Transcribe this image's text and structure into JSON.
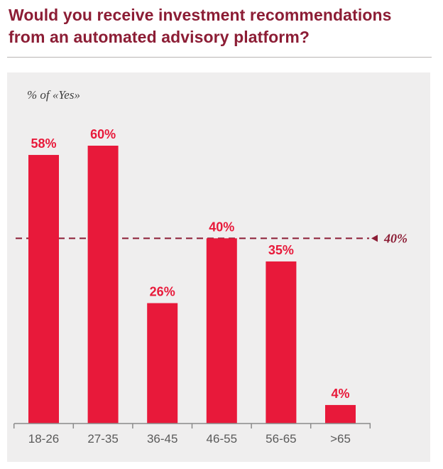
{
  "chart_data": {
    "type": "bar",
    "title": "Would you receive investment recommendations from an automated advisory platform?",
    "title_lines": [
      "Would you receive investment recommendations",
      "from an automated advisory platform?"
    ],
    "ylabel": "% of «Yes»",
    "xlabel": "",
    "categories": [
      "18-26",
      "27-35",
      "36-45",
      "46-55",
      "56-65",
      ">65"
    ],
    "values": [
      58,
      60,
      26,
      40,
      35,
      4
    ],
    "value_labels": [
      "58%",
      "60%",
      "26%",
      "40%",
      "35%",
      "4%"
    ],
    "ylim": [
      0,
      60
    ],
    "grid": false,
    "reference_line": {
      "value": 40,
      "label": "40%"
    }
  },
  "colors": {
    "title": "#8c1d35",
    "bar": "#e8193a",
    "panel": "#efeeee",
    "reference_line": "#8c1d35",
    "axis": "#8a8a8a",
    "tick_text": "#5a5a5a"
  }
}
